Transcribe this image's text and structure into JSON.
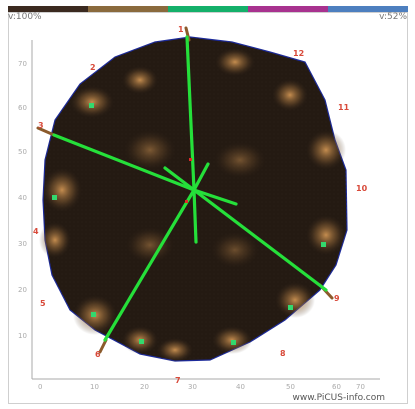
{
  "header": {
    "left_value": "v:100%",
    "right_value": "v:52%",
    "color_bar": [
      "#3b2a20",
      "#8a6a3d",
      "#14b06a",
      "#a8328f",
      "#4d7fbf"
    ]
  },
  "footer": {
    "site": "www.PiCUS-info.com"
  },
  "sensor_labels": [
    "1",
    "2",
    "3",
    "4",
    "5",
    "6",
    "7",
    "8",
    "9",
    "10",
    "11",
    "12"
  ],
  "x_ticks": [
    "0",
    "10",
    "20",
    "30",
    "40",
    "50",
    "60",
    "70"
  ],
  "y_ticks": [
    "10",
    "20",
    "30",
    "40",
    "50",
    "60",
    "70"
  ]
}
